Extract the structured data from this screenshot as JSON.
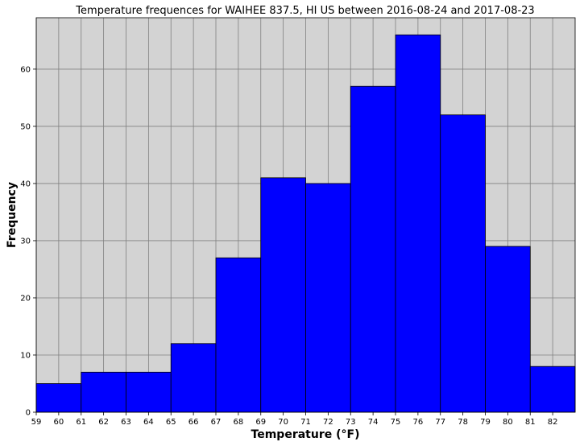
{
  "chart_data": {
    "type": "bar",
    "title": "Temperature frequences for WAIHEE 837.5, HI US between 2016-08-24 and 2017-08-23",
    "xlabel": "Temperature (°F)",
    "ylabel": "Frequency",
    "xlim": [
      59,
      83
    ],
    "ylim": [
      0,
      69
    ],
    "x_ticks": [
      59,
      60,
      61,
      62,
      63,
      64,
      65,
      66,
      67,
      68,
      69,
      70,
      71,
      72,
      73,
      74,
      75,
      76,
      77,
      78,
      79,
      80,
      81,
      82
    ],
    "y_ticks": [
      0,
      10,
      20,
      30,
      40,
      50,
      60
    ],
    "grid": true,
    "bins": [
      {
        "start": 59,
        "end": 61,
        "value": 5
      },
      {
        "start": 61,
        "end": 63,
        "value": 7
      },
      {
        "start": 63,
        "end": 65,
        "value": 7
      },
      {
        "start": 65,
        "end": 67,
        "value": 12
      },
      {
        "start": 67,
        "end": 69,
        "value": 27
      },
      {
        "start": 69,
        "end": 71,
        "value": 41
      },
      {
        "start": 71,
        "end": 73,
        "value": 40
      },
      {
        "start": 73,
        "end": 75,
        "value": 57
      },
      {
        "start": 75,
        "end": 77,
        "value": 66
      },
      {
        "start": 77,
        "end": 79,
        "value": 52
      },
      {
        "start": 79,
        "end": 81,
        "value": 29
      },
      {
        "start": 81,
        "end": 83,
        "value": 8
      }
    ],
    "colors": {
      "bar_fill": "#0000ff",
      "bar_edge": "#000000",
      "plot_background": "#d3d3d3",
      "grid": "#808080"
    }
  }
}
